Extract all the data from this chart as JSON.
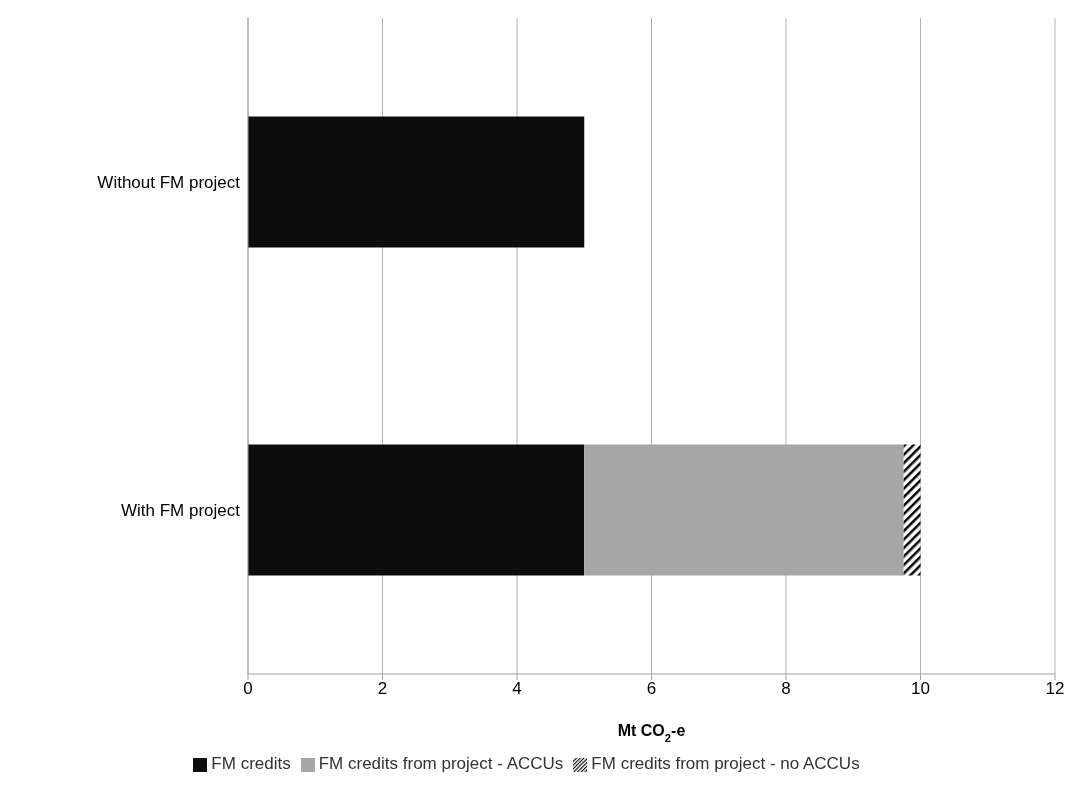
{
  "chart_data": {
    "type": "bar",
    "orientation": "horizontal",
    "stacked": true,
    "categories": [
      "Without FM project",
      "With FM project"
    ],
    "series": [
      {
        "name": "FM credits",
        "color": "#0d0d0d",
        "values": [
          5,
          5
        ]
      },
      {
        "name": "FM credits from project - ACCUs",
        "color": "#a6a6a6",
        "values": [
          null,
          4.75
        ]
      },
      {
        "name": "FM credits from project - no ACCUs",
        "color": "#000000",
        "values": [
          null,
          0.25
        ]
      }
    ],
    "xlabel": "Mt CO$_{2}$-e",
    "xlim": [
      0,
      12
    ],
    "xticks": [
      0,
      2,
      4,
      6,
      8,
      10,
      12
    ],
    "grid": "x",
    "legend": "bottom"
  }
}
